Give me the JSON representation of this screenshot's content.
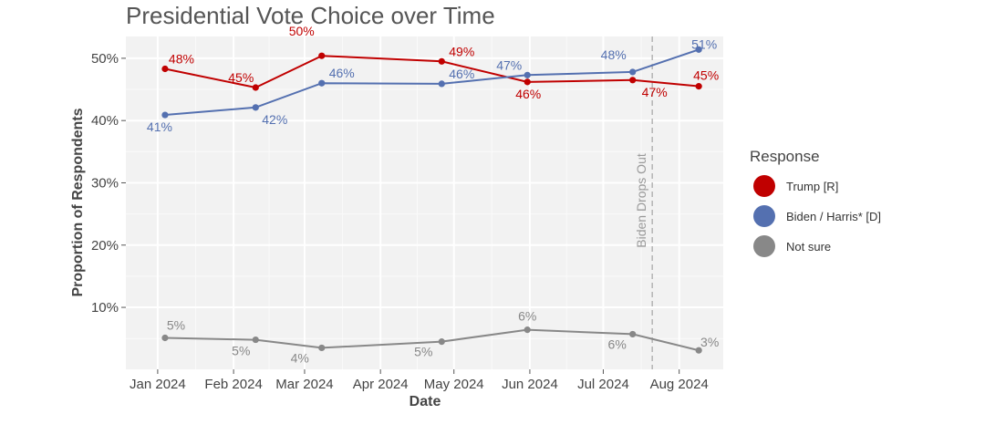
{
  "chart_data": {
    "type": "line",
    "title": "Presidential Vote Choice over Time",
    "xlabel": "Date",
    "ylabel": "Proportion of Respondents",
    "x_ticks": [
      "Jan 2024",
      "Feb 2024",
      "Mar 2024",
      "Apr 2024",
      "May 2024",
      "Jun 2024",
      "Jul 2024",
      "Aug 2024"
    ],
    "y_ticks": [
      "10%",
      "20%",
      "30%",
      "40%",
      "50%"
    ],
    "ylim": [
      0.05,
      53.5
    ],
    "grid": true,
    "legend_title": "Response",
    "legend_position": "right",
    "annotation": {
      "text": "Biden Drops Out",
      "date": "2024-07-21"
    },
    "series": [
      {
        "name": "Trump [R]",
        "color": "#C00000",
        "dates": [
          "2024-01-04",
          "2024-02-10",
          "2024-03-08",
          "2024-04-26",
          "2024-05-31",
          "2024-07-13",
          "2024-08-09"
        ],
        "values": [
          48.3,
          45.3,
          50.4,
          49.5,
          46.2,
          46.5,
          45.5
        ],
        "labels": [
          "48%",
          "45%",
          "50%",
          "49%",
          "46%",
          "47%",
          "45%"
        ]
      },
      {
        "name": "Biden / Harris* [D]",
        "color": "#5470B0",
        "dates": [
          "2024-01-04",
          "2024-02-10",
          "2024-03-08",
          "2024-04-26",
          "2024-05-31",
          "2024-07-13",
          "2024-08-09"
        ],
        "values": [
          40.9,
          42.1,
          46.0,
          45.9,
          47.3,
          47.8,
          51.4
        ],
        "labels": [
          "41%",
          "42%",
          "46%",
          "46%",
          "47%",
          "48%",
          "51%"
        ]
      },
      {
        "name": "Not sure",
        "color": "#888888",
        "dates": [
          "2024-01-04",
          "2024-02-10",
          "2024-03-08",
          "2024-04-26",
          "2024-05-31",
          "2024-07-13",
          "2024-08-09"
        ],
        "values": [
          5.1,
          4.8,
          3.5,
          4.5,
          6.4,
          5.7,
          3.1
        ],
        "labels": [
          "5%",
          "5%",
          "4%",
          "5%",
          "6%",
          "6%",
          "3%"
        ]
      }
    ]
  }
}
